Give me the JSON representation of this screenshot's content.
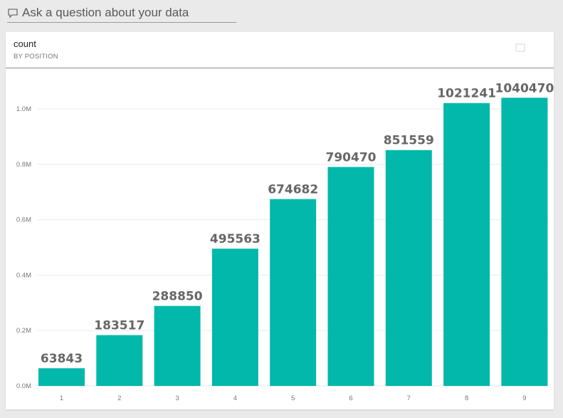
{
  "qa": {
    "placeholder": "Ask a question about your data",
    "icon": "speech-bubble-icon"
  },
  "tile": {
    "title": "count",
    "subtitle": "BY POSITION",
    "menu_icon": "focus-mode-icon"
  },
  "colors": {
    "bar": "#01b8aa",
    "grid": "#ebebeb",
    "background": "#eaeaea"
  },
  "chart_data": {
    "type": "bar",
    "title": "count",
    "subtitle": "BY POSITION",
    "categories": [
      "1",
      "2",
      "3",
      "4",
      "5",
      "6",
      "7",
      "8",
      "9"
    ],
    "values": [
      63843,
      183517,
      288850,
      495563,
      674682,
      790470,
      851559,
      1021241,
      1040470
    ],
    "data_labels": [
      "63843",
      "183517",
      "288850",
      "495563",
      "674682",
      "790470",
      "851559",
      "1021241",
      "1040470"
    ],
    "ylim": [
      0,
      1000000
    ],
    "yticks": [
      0,
      200000,
      400000,
      600000,
      800000,
      1000000
    ],
    "ytick_labels": [
      "0.0M",
      "0.2M",
      "0.4M",
      "0.6M",
      "0.8M",
      "1.0M"
    ],
    "xlabel": "",
    "ylabel": "",
    "grid": true,
    "legend": "none"
  }
}
